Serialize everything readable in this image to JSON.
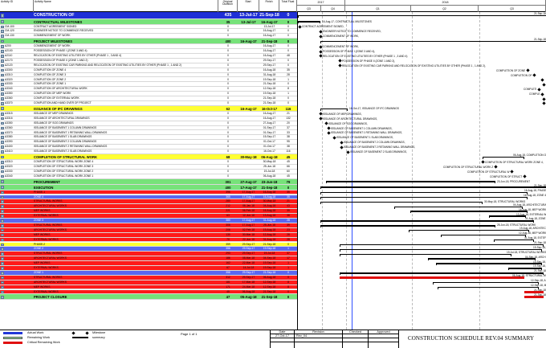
{
  "header": {
    "activity_id": "Activity ID",
    "activity_name": "Activity Name",
    "orig_duration": "Original Duration",
    "start": "Start",
    "finish": "Finish",
    "total_float": "Total Float",
    "years": [
      "2017",
      "2018"
    ],
    "quarters": [
      "Q3",
      "Q4",
      "Q1",
      "Q2",
      "Q3"
    ]
  },
  "rows": [
    {
      "id": "",
      "name": "CONSTRUCTION OF",
      "dur": "435",
      "start": "13-Jul-17",
      "finish": "21-Sep-18",
      "tf": "0",
      "style": "big",
      "bg": "#1f2fd6",
      "fg": "#fff",
      "bar": [
        0,
        310
      ],
      "kind": "sum",
      "label": "21-Sep-18"
    },
    {
      "id": "",
      "name": "CONTRACTUAL MILESTONES",
      "dur": "35",
      "start": "13-Jul-17",
      "finish": "16-Aug-17",
      "tf": "0",
      "style": "mid",
      "bg": "#77e27a",
      "fg": "#000",
      "bar": [
        0,
        28
      ],
      "kind": "sum",
      "label": "16-Aug-17, CONTRACTUAL MILESTONES"
    },
    {
      "id": "CM-100",
      "name": "CONTRACT AGREEMENT SIGNED",
      "dur": "0",
      "start": "",
      "finish": "13-Jul-17",
      "tf": "0",
      "bg": "#fff",
      "ms": 2,
      "label": "CONTRACT AGREEMENT SIGNED,"
    },
    {
      "id": "CM-120",
      "name": "ENGINEER NOTICE TO COMMENCE RECEIVED",
      "dur": "0",
      "start": "",
      "finish": "16-Aug-17",
      "tf": "0",
      "bg": "#fff",
      "ms": 28,
      "label": "ENGINEER NOTICE TO COMMENCE RECEIVED,"
    },
    {
      "id": "CM-130",
      "name": "COMMENCEMENT OF WORK",
      "dur": "0",
      "start": "",
      "finish": "16-Aug-17",
      "tf": "0",
      "bg": "#fff",
      "ms": 28,
      "label": "COMMENCEMENT OF WORK,"
    },
    {
      "id": "",
      "name": "PROJECT MILESTONES",
      "dur": "400",
      "start": "16-Aug-17",
      "finish": "21-Sep-18",
      "tf": "0",
      "style": "mid",
      "bg": "#77e27a",
      "fg": "#000",
      "bar": [
        28,
        310
      ],
      "kind": "sum",
      "label": "21-Sep-18"
    },
    {
      "id": "A200",
      "name": "COMMENCEMENT OF WORK",
      "dur": "0",
      "start": "",
      "finish": "16-Aug-17",
      "tf": "0",
      "bg": "#fff",
      "ms": 28,
      "label": "COMMENCEMENT OF WORK,"
    },
    {
      "id": "A2100",
      "name": "POSSESSION OF PHASE I (ZONE 3 AND 4)",
      "dur": "0",
      "start": "",
      "finish": "16-Aug-17",
      "tf": "0",
      "bg": "#fff",
      "ms": 28,
      "label": "POSSESSION OF PHASE I (ZONE 3 AND 4),"
    },
    {
      "id": "A2110",
      "name": "RELOCATION OF EXISTING UTILITIES BY OTHER (PHASE 1 , 3 AND 4)",
      "dur": "0",
      "start": "",
      "finish": "16-Aug-17",
      "tf": "48",
      "bg": "#fff",
      "ms": 28,
      "label": "RELOCATION OF EXISTING UTILITIES BY OTHER (PHASE 1 , 3 AND 4)"
    },
    {
      "id": "A2170",
      "name": "POSSESSION OF PHASE II (ZONE 1 AND 2)",
      "dur": "0",
      "start": "",
      "finish": "29-Sep-17",
      "tf": "0",
      "bg": "#fff",
      "ms": 52,
      "label": "POSSESSION OF PHASE II (ZONE 1 AND 2),"
    },
    {
      "id": "A2120",
      "name": "RELOCATION OF EXISTING CAR PARKING AND RELOCATION OF EXISTING UTILITIES BY OTHER (PHASE 1 , 1 AND 2)",
      "dur": "0",
      "start": "",
      "finish": "29-Sep-17",
      "tf": "0",
      "bg": "#fff",
      "ms": 52,
      "label": "RELOCATION OF EXISTING CAR PARKING AND RELOCATION OF EXISTING UTILITIES BY OTHER (PHASE 1 , 1 AND 2),"
    },
    {
      "id": "A3300",
      "name": "COMPLETION OF ZONE 4",
      "dur": "0",
      "start": "",
      "finish": "16-Aug-18",
      "tf": "35",
      "bg": "#fff",
      "ms": 286,
      "label": "COMPLETION OF ZONE"
    },
    {
      "id": "A3310",
      "name": "COMPLETION OF ZONE 3",
      "dur": "0",
      "start": "",
      "finish": "31-Aug-18",
      "tf": "28",
      "bg": "#fff",
      "ms": 294,
      "label": "COMPLETION OF"
    },
    {
      "id": "A3320",
      "name": "COMPLETION OF ZONE 2",
      "dur": "0",
      "start": "",
      "finish": "19-Sep-18",
      "tf": "1",
      "bg": "#fff",
      "ms": 304,
      "label": ""
    },
    {
      "id": "A3330",
      "name": "COMPLETION OF ZONE 1",
      "dur": "0",
      "start": "",
      "finish": "21-Sep-18",
      "tf": "0",
      "bg": "#fff",
      "ms": 306,
      "label": ""
    },
    {
      "id": "A3340",
      "name": "COMPLETION OF ARCHITECTURAL WORK",
      "dur": "0",
      "start": "",
      "finish": "12-Sep-18",
      "tf": "8",
      "bg": "#fff",
      "ms": 300,
      "label": "COMPLETI"
    },
    {
      "id": "A3350",
      "name": "COMPLETION OF MEP WORK",
      "dur": "0",
      "start": "",
      "finish": "19-Sep-18",
      "tf": "1",
      "bg": "#fff",
      "ms": 304,
      "label": "COMPLE"
    },
    {
      "id": "A3360",
      "name": "COMPLETION OF EXTERNAL WORK",
      "dur": "0",
      "start": "",
      "finish": "21-Sep-18",
      "tf": "0",
      "bg": "#fff",
      "ms": 306,
      "label": ""
    },
    {
      "id": "A3370",
      "name": "COMPLETION AND HAND OVER OF PROJECT",
      "dur": "0",
      "start": "",
      "finish": "21-Sep-18",
      "tf": "0",
      "bg": "#fff",
      "ms": 306,
      "label": ""
    },
    {
      "id": "",
      "name": "ISSUANCE OF IFC DRAWINGS",
      "dur": "62",
      "start": "16-Aug-17",
      "finish": "16-Oct-17",
      "tf": "116",
      "style": "mid",
      "bg": "#ffff33",
      "fg": "#000",
      "bar": [
        28,
        62
      ],
      "kind": "sum",
      "label": "16-Oct-17, ISSUANCE OF IFC DRAWINGS"
    },
    {
      "id": "A3315",
      "name": "ISSUANCE OF MEP DRAWINGS",
      "dur": "0",
      "start": "",
      "finish": "16-Aug-17",
      "tf": "21",
      "bg": "#fff",
      "ms": 28,
      "label": "ISSUANCE OF MEP DRAWINGS,"
    },
    {
      "id": "A3316",
      "name": "ISSUANCE OF ARCHITECTURAL DRAWINGS",
      "dur": "0",
      "start": "",
      "finish": "16-Aug-17",
      "tf": "132",
      "bg": "#fff",
      "ms": 28,
      "label": "ISSUANCE OF ARCHITECTURAL DRAWINGS,"
    },
    {
      "id": "A3350",
      "name": "ISSUANCE OF SOG DRAWINGS",
      "dur": "0",
      "start": "",
      "finish": "27-Aug-17",
      "tf": "20",
      "bg": "#fff",
      "ms": 35,
      "label": "ISSUANCE OF SOG DRAWINGS,"
    },
    {
      "id": "A3360",
      "name": "ISSUANCE OF BASEMENT 1 COLUMN DRAWINGS",
      "dur": "0",
      "start": "",
      "finish": "01-Sep-17",
      "tf": "37",
      "bg": "#fff",
      "ms": 38,
      "label": "ISSUANCE OF BASEMENT 1 COLUMN DRAWINGS,"
    },
    {
      "id": "A3370",
      "name": "ISSUANCE OF BASEMENT 1 RETAINING WALL DRAWINGS",
      "dur": "0",
      "start": "",
      "finish": "01-Sep-17",
      "tf": "33",
      "bg": "#fff",
      "ms": 38,
      "label": "ISSUANCE OF BASEMENT 1 RETAINING WALL DRAWINGS,"
    },
    {
      "id": "A3380",
      "name": "ISSUANCE OF BASEMENT 1 SLAB DRAWINGS",
      "dur": "0",
      "start": "",
      "finish": "15-Sep-17",
      "tf": "38",
      "bg": "#fff",
      "ms": 45,
      "label": "ISSUANCE OF BASEMENT 1 SLAB DRAWINGS,"
    },
    {
      "id": "A3390",
      "name": "ISSUANCE OF BASEMENT 2 COLUMN DRAWINGS",
      "dur": "0",
      "start": "",
      "finish": "01-Oct-17",
      "tf": "95",
      "bg": "#fff",
      "ms": 54,
      "label": "ISSUANCE OF BASEMENT 2 COLUMN DRAWINGS,"
    },
    {
      "id": "A3400",
      "name": "ISSUANCE OF BASEMENT 2 RETAINING WALL DRAWINGS",
      "dur": "0",
      "start": "",
      "finish": "01-Oct-17",
      "tf": "38",
      "bg": "#fff",
      "ms": 54,
      "label": "ISSUANCE OF BASEMENT 2 RETAINING WALL DRAWINGS,"
    },
    {
      "id": "A3410",
      "name": "ISSUANCE OF BASEMENT 2 SLAB DRAWINGS",
      "dur": "0",
      "start": "",
      "finish": "16-Oct-17",
      "tf": "116",
      "bg": "#fff",
      "ms": 62,
      "label": "ISSUANCE OF BASEMENT 2 SLAB DRAWINGS,"
    },
    {
      "id": "",
      "name": "COMPLETION OF STRUCTURAL WORK",
      "dur": "68",
      "start": "30-May-18",
      "finish": "06-Aug-18",
      "tf": "45",
      "style": "mid",
      "bg": "#ffff33",
      "fg": "#000",
      "bar": [
        230,
        282
      ],
      "kind": "sum",
      "label": "06-Aug-18, COMPLETION O"
    },
    {
      "id": "A3310",
      "name": "COMPLETION OF STRUCTURAL WORK ZONE 4",
      "dur": "0",
      "start": "",
      "finish": "30-May-18",
      "tf": "45",
      "bg": "#fff",
      "ms": 230,
      "label": "COMPLETION OF STRUCTURAL WORK ZONE 4,"
    },
    {
      "id": "A3320",
      "name": "COMPLETION OF STRUCTURAL WORK ZONE 3",
      "dur": "0",
      "start": "",
      "finish": "25-Jun-18",
      "tf": "66",
      "bg": "#fff",
      "ms": 246,
      "label": "COMPLETION OF STRUCTURAL WORK Z"
    },
    {
      "id": "A3330",
      "name": "COMPLETION OF STRUCTURAL WORK ZONE 2",
      "dur": "0",
      "start": "",
      "finish": "19-Jul-18",
      "tf": "60",
      "bg": "#fff",
      "ms": 266,
      "label": "COMPLETION OF STRUCTURAL W"
    },
    {
      "id": "A3340",
      "name": "COMPLETION OF STRUCTURAL WORK ZONE 1",
      "dur": "0",
      "start": "",
      "finish": "06-Aug-18",
      "tf": "45",
      "bg": "#fff",
      "ms": 282,
      "label": "COMPLETION OF STRUCT"
    },
    {
      "id": "",
      "name": "PROCUREMENT",
      "dur": "301",
      "start": "27-Aug-17",
      "finish": "23-Jun-18",
      "tf": "79",
      "style": "mid",
      "bg": "#77e27a",
      "fg": "#000",
      "bar": [
        35,
        246
      ],
      "kind": "sum",
      "label": "23-Jun-18, PROCUREMENT"
    },
    {
      "id": "",
      "name": "EXECUTION",
      "dur": "400",
      "start": "17-Aug-17",
      "finish": "21-Sep-18",
      "tf": "0",
      "style": "mid",
      "bg": "#77e27a",
      "fg": "#000",
      "bar": [
        28,
        310
      ],
      "kind": "sum",
      "label": "21-Sep-18"
    },
    {
      "id": "",
      "name": "PHASE-1",
      "dur": "396",
      "start": "17-Aug-17",
      "finish": "16-Aug-18",
      "tf": "35",
      "bg": "#ff1a1a",
      "fg": "#000",
      "bar": [
        28,
        286
      ],
      "kind": "sum",
      "label": "16-Aug-18, PHASE"
    },
    {
      "id": "",
      "name": "ZONE 4",
      "dur": "365",
      "start": "17-Aug-17",
      "finish": "16-Aug-18",
      "tf": "35",
      "bg": "#5a67f0",
      "fg": "#fff",
      "bar": [
        28,
        286
      ],
      "kind": "sum",
      "label": "16-Aug-18, ZONE 4"
    },
    {
      "id": "",
      "name": "STRUCTURAL WORKS",
      "dur": "280",
      "start": "17-Aug-17",
      "finish": "30-May-18",
      "tf": "21",
      "bg": "#ff1a1a",
      "fg": "#000",
      "bar": [
        28,
        230
      ],
      "kind": "sum",
      "label": "30-May-18, STRUCTURAL WORKS"
    },
    {
      "id": "",
      "name": "ARCHITECTURAL WORKS",
      "dur": "212",
      "start": "06-Jan-18",
      "finish": "04-Aug-18",
      "tf": "43",
      "bg": "#ff1a1a",
      "fg": "#000",
      "bar": [
        120,
        280
      ],
      "kind": "sum",
      "label": "04-Aug-18, ARCHITECTURA"
    },
    {
      "id": "",
      "name": "MEP WORKS",
      "dur": "221",
      "start": "06-Feb-18",
      "finish": "16-Aug-18",
      "tf": "35",
      "bg": "#ff1a1a",
      "fg": "#000",
      "bar": [
        140,
        286
      ],
      "kind": "sum",
      "label": "16-Aug-18, MEP WORK"
    },
    {
      "id": "",
      "name": "EXTERNAL WORKS",
      "dur": "63",
      "start": "12-Jun-18",
      "finish": "13-Aug-18",
      "tf": "38",
      "bg": "#ff1a1a",
      "fg": "#000",
      "bar": [
        238,
        284
      ],
      "kind": "sum",
      "label": "13-Aug-18, EXTERNAL W"
    },
    {
      "id": "",
      "name": "ZONE 3",
      "dur": "380",
      "start": "17-Aug-17",
      "finish": "31-Aug-18",
      "tf": "28",
      "bg": "#5a67f0",
      "fg": "#fff",
      "bar": [
        28,
        294
      ],
      "kind": "sum",
      "label": "31-Aug-18, ZONE"
    },
    {
      "id": "",
      "name": "STRUCTURAL WORKS",
      "dur": "306",
      "start": "17-Aug-17",
      "finish": "25-Jun-18",
      "tf": "39",
      "bg": "#ff1a1a",
      "fg": "#000",
      "bar": [
        28,
        246
      ],
      "kind": "sum",
      "label": "25-Jun-18, STRUCTURAL WORK"
    },
    {
      "id": "",
      "name": "ARCHITECTURAL WORKS",
      "dur": "206",
      "start": "02-Feb-18",
      "finish": "19-Aug-18",
      "tf": "23",
      "bg": "#ff1a1a",
      "fg": "#000",
      "bar": [
        138,
        288
      ],
      "kind": "sum",
      "label": "19-Aug-18, ARCHITEC"
    },
    {
      "id": "",
      "name": "MEP WORKS",
      "dur": "130",
      "start": "30-Mar-18",
      "finish": "12-Aug-18",
      "tf": "28",
      "bg": "#ff1a1a",
      "fg": "#000",
      "bar": [
        178,
        284
      ],
      "kind": "sum",
      "label": "12-Aug-18, MEP WORK"
    },
    {
      "id": "",
      "name": "EXTERNAL WORKS",
      "dur": "70",
      "start": "22-Jun-18",
      "finish": "31-Aug-18",
      "tf": "28",
      "bg": "#ff1a1a",
      "fg": "#000",
      "bar": [
        244,
        294
      ],
      "kind": "sum",
      "label": "31-Aug-18, EXTEF"
    },
    {
      "id": "",
      "name": "PHASE-2",
      "dur": "359",
      "start": "29-Sep-17",
      "finish": "21-Sep-18",
      "tf": "0",
      "bg": "#ffff33",
      "fg": "#000",
      "bar": [
        52,
        306
      ],
      "kind": "sum",
      "label": "21-Sep-18"
    },
    {
      "id": "",
      "name": "ZONE 2",
      "dur": "356",
      "start": "29-Sep-17",
      "finish": "19-Sep-18",
      "tf": "1",
      "bg": "#5a67f0",
      "fg": "#fff",
      "bar": [
        52,
        304
      ],
      "kind": "sum",
      "label": "19-Sep-18,"
    },
    {
      "id": "",
      "name": "STRUCTURAL WORKS",
      "dur": "293",
      "start": "29-Sep-17",
      "finish": "19-Jul-18",
      "tf": "37",
      "bg": "#ff1a1a",
      "fg": "#000",
      "bar": [
        52,
        266
      ],
      "kind": "sum",
      "label": "19-Jul-18, STRUCTURAL WORKS"
    },
    {
      "id": "",
      "name": "ARCHITECTURAL WORKS",
      "dur": "186",
      "start": "08-Mar-18",
      "finish": "04-Sep-18",
      "tf": "17",
      "bg": "#ff1a1a",
      "fg": "#000",
      "bar": [
        162,
        296
      ],
      "kind": "sum",
      "label": "04-Sep-18, ARCH"
    },
    {
      "id": "",
      "name": "MEP WORKS",
      "dur": "162",
      "start": "22-Mar-18",
      "finish": "19-Sep-18",
      "tf": "1",
      "bg": "#ff1a1a",
      "fg": "#000",
      "bar": [
        172,
        304
      ],
      "kind": "sum",
      "label": "19-Sep-18,"
    },
    {
      "id": "",
      "name": "EXTERNAL WORKS",
      "dur": "67",
      "start": "14-Jul-18",
      "finish": "19-Sep-18",
      "tf": "1",
      "bg": "#ff1a1a",
      "fg": "#000",
      "bar": [
        262,
        304
      ],
      "kind": "sum",
      "label": "19-Sep-18,"
    },
    {
      "id": "",
      "name": "ZONE 1",
      "dur": "358",
      "start": "29-Sep-17",
      "finish": "21-Sep-18",
      "tf": "0",
      "bg": "#5a67f0",
      "fg": "#fff",
      "bar": [
        52,
        306
      ],
      "kind": "sum",
      "label": "21-Sep-18"
    },
    {
      "id": "",
      "name": "STRUCTURAL WORKS",
      "dur": "312",
      "start": "29-Sep-17",
      "finish": "06-Aug-18",
      "tf": "0",
      "bg": "#ff1a1a",
      "fg": "#000",
      "bar": [
        52,
        282
      ],
      "kind": "crit",
      "label": "06-Aug-18, STRUCTURAL W"
    },
    {
      "id": "",
      "name": "ARCHITECTURAL WORKS",
      "dur": "181",
      "start": "17-Mar-18",
      "finish": "12-Sep-18",
      "tf": "8",
      "bg": "#ff1a1a",
      "fg": "#000",
      "bar": [
        168,
        300
      ],
      "kind": "sum",
      "label": "12-Sep-18, A"
    },
    {
      "id": "",
      "name": "MEP WORKS",
      "dur": "171",
      "start": "24-Mar-18",
      "finish": "12-Sep-18",
      "tf": "8",
      "bg": "#ff1a1a",
      "fg": "#000",
      "bar": [
        174,
        300
      ],
      "kind": "sum",
      "label": "12-Sep-18, M"
    },
    {
      "id": "",
      "name": "EXTERNAL WORKS",
      "dur": "45",
      "start": "06-Aug-18",
      "finish": "21-Sep-18",
      "tf": "0",
      "bg": "#ff1a1a",
      "fg": "#000",
      "bar": [
        282,
        306
      ],
      "kind": "crit",
      "label": "21-Sep-18"
    },
    {
      "id": "",
      "name": "PROJECT CLOSURE",
      "dur": "47",
      "start": "05-Aug-18",
      "finish": "21-Sep-18",
      "tf": "0",
      "style": "mid",
      "bg": "#77e27a",
      "fg": "#000",
      "bar": [
        282,
        306
      ],
      "kind": "crit",
      "label": "21-Sep-18"
    }
  ],
  "legend": {
    "actual": "Actual Work",
    "remaining": "Remaining Work",
    "critical": "Critical Remaining Work",
    "milestone": "Milestone",
    "summary": "summary"
  },
  "footer": {
    "page": "Page 1 of 1",
    "date_label": "Date",
    "revision_label": "Revision",
    "checked_label": "Checked",
    "approved_label": "Approved",
    "date": "27-Oct-17",
    "revision": "Rev_04",
    "title": "CONSTRUCTION SCHEDULE REV.04 SUMMARY"
  },
  "colors": {
    "blue": "#1f2fd6",
    "green": "#77e27a",
    "yellow": "#ffff33",
    "red": "#ff1a1a",
    "zone": "#5a67f0",
    "critical": "#e01010",
    "remaining": "#9be29d",
    "actual": "#2337d8"
  }
}
